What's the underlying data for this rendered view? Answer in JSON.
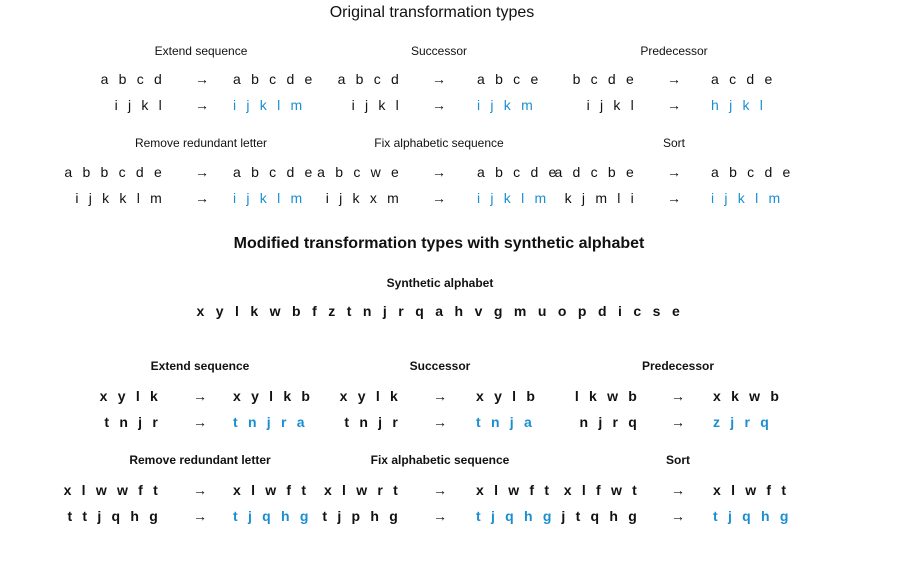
{
  "original": {
    "title": "Original transformation types",
    "groups": [
      {
        "label": "Extend sequence",
        "rows": [
          {
            "src": "a b c d",
            "dst": "a b c d e"
          },
          {
            "src": "i j k l",
            "dst": "i j k l m"
          }
        ]
      },
      {
        "label": "Successor",
        "rows": [
          {
            "src": "a b c d",
            "dst": "a b c e"
          },
          {
            "src": "i j k l",
            "dst": "i j k m"
          }
        ]
      },
      {
        "label": "Predecessor",
        "rows": [
          {
            "src": "b c d e",
            "dst": "a c d e"
          },
          {
            "src": "i j k l",
            "dst": "h j k l"
          }
        ]
      },
      {
        "label": "Remove redundant letter",
        "rows": [
          {
            "src": "a b b c d e",
            "dst": "a b c d e"
          },
          {
            "src": "i j k k l m",
            "dst": "i j k l m"
          }
        ]
      },
      {
        "label": "Fix alphabetic sequence",
        "rows": [
          {
            "src": "a b c w e",
            "dst": "a b c d e"
          },
          {
            "src": "i j k x m",
            "dst": "i j k l m"
          }
        ]
      },
      {
        "label": "Sort",
        "rows": [
          {
            "src": "a d c b e",
            "dst": "a b c d e"
          },
          {
            "src": "k j m l i",
            "dst": "i j k l m"
          }
        ]
      }
    ]
  },
  "modified": {
    "title": "Modified transformation types with synthetic alphabet",
    "alphabet_label": "Synthetic alphabet",
    "alphabet": "x y l k w b f z t n j r q a h v g m u o p d i c s e",
    "groups": [
      {
        "label": "Extend sequence",
        "rows": [
          {
            "src": "x y l k",
            "dst": "x y l k b"
          },
          {
            "src": "t n j r",
            "dst": "t n j r a"
          }
        ]
      },
      {
        "label": "Successor",
        "rows": [
          {
            "src": "x y l k",
            "dst": "x y l b"
          },
          {
            "src": "t n j r",
            "dst": "t n j a"
          }
        ]
      },
      {
        "label": "Predecessor",
        "rows": [
          {
            "src": "l k w b",
            "dst": "x k w b"
          },
          {
            "src": "n j r q",
            "dst": "z j r q"
          }
        ]
      },
      {
        "label": "Remove redundant letter",
        "rows": [
          {
            "src": "x l w w f t",
            "dst": "x l w f t"
          },
          {
            "src": "t t j q h g",
            "dst": "t j q h g"
          }
        ]
      },
      {
        "label": "Fix alphabetic sequence",
        "rows": [
          {
            "src": "x l w r t",
            "dst": "x l w f t"
          },
          {
            "src": "t j p h g",
            "dst": "t j q h g"
          }
        ]
      },
      {
        "label": "Sort",
        "rows": [
          {
            "src": "x l f w t",
            "dst": "x l w f t"
          },
          {
            "src": "j t q h g",
            "dst": "t j q h g"
          }
        ]
      }
    ]
  },
  "arrow": "→",
  "colors": {
    "text": "#111111",
    "answer": "#1a8fd0",
    "background": "#ffffff"
  }
}
